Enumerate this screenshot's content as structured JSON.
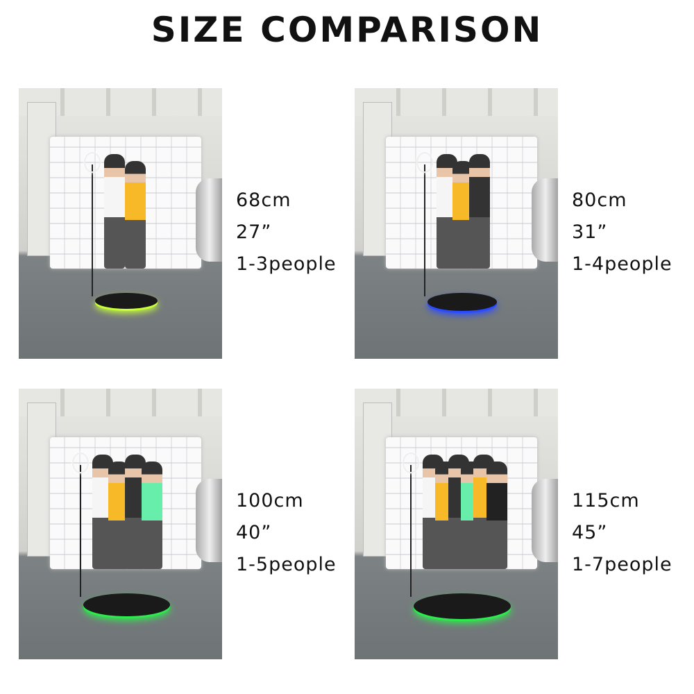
{
  "title": "SIZE COMPARISON",
  "items": [
    {
      "size_cm": "68cm",
      "size_in": "27”",
      "capacity": "1-3people",
      "glow_color": "#c8ff3a"
    },
    {
      "size_cm": "80cm",
      "size_in": "31”",
      "capacity": "1-4people",
      "glow_color": "#2a4bff"
    },
    {
      "size_cm": "100cm",
      "size_in": "40”",
      "capacity": "1-5people",
      "glow_color": "#2eea4e"
    },
    {
      "size_cm": "115cm",
      "size_in": "45”",
      "capacity": "1-7people",
      "glow_color": "#2eea4e"
    }
  ]
}
